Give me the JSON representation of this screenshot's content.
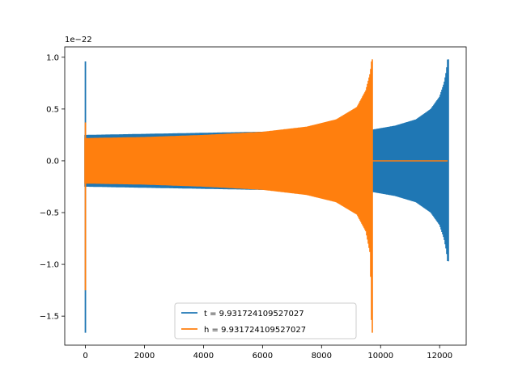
{
  "chart_data": {
    "type": "line",
    "title": "",
    "xlabel": "",
    "ylabel": "",
    "y_offset_label": "1e−22",
    "xlim": [
      -700,
      12900
    ],
    "ylim": [
      -1.78,
      1.1
    ],
    "x_ticks": [
      0,
      2000,
      4000,
      6000,
      8000,
      10000,
      12000
    ],
    "x_tick_labels": [
      "0",
      "2000",
      "4000",
      "6000",
      "8000",
      "10000",
      "12000"
    ],
    "y_ticks": [
      -1.5,
      -1.0,
      -0.5,
      0.0,
      0.5,
      1.0
    ],
    "y_tick_labels": [
      "−1.5",
      "−1.0",
      "−0.5",
      "0.0",
      "0.5",
      "1.0"
    ],
    "grid": false,
    "legend_position": "lower-center",
    "series": [
      {
        "name": "t = 9.931724109527027",
        "color": "#1f77b4",
        "spike": {
          "x": 0,
          "max": 0.96,
          "min": -1.66
        },
        "envelope": [
          {
            "x": 0,
            "upper": 0.25,
            "lower": -0.25
          },
          {
            "x": 9700,
            "upper": 0.3,
            "lower": -0.3
          },
          {
            "x": 10500,
            "upper": 0.34,
            "lower": -0.34
          },
          {
            "x": 11200,
            "upper": 0.4,
            "lower": -0.4
          },
          {
            "x": 11700,
            "upper": 0.5,
            "lower": -0.5
          },
          {
            "x": 12000,
            "upper": 0.62,
            "lower": -0.62
          },
          {
            "x": 12150,
            "upper": 0.75,
            "lower": -0.75
          },
          {
            "x": 12230,
            "upper": 0.87,
            "lower": -0.87
          },
          {
            "x": 12270,
            "upper": 0.98,
            "lower": -0.97
          }
        ]
      },
      {
        "name": "h = 9.931724109527027",
        "color": "#ff7f0e",
        "spike": {
          "x": 0,
          "max": 0.37,
          "min": -1.25
        },
        "envelope": [
          {
            "x": 0,
            "upper": 0.22,
            "lower": -0.22
          },
          {
            "x": 2000,
            "upper": 0.23,
            "lower": -0.23
          },
          {
            "x": 4000,
            "upper": 0.25,
            "lower": -0.25
          },
          {
            "x": 6000,
            "upper": 0.28,
            "lower": -0.28
          },
          {
            "x": 7500,
            "upper": 0.33,
            "lower": -0.33
          },
          {
            "x": 8500,
            "upper": 0.4,
            "lower": -0.4
          },
          {
            "x": 9200,
            "upper": 0.52,
            "lower": -0.52
          },
          {
            "x": 9500,
            "upper": 0.68,
            "lower": -0.68
          },
          {
            "x": 9650,
            "upper": 0.85,
            "lower": -0.9
          },
          {
            "x": 9700,
            "upper": 0.98,
            "lower": -1.66
          }
        ],
        "flat_tail": {
          "x_start": 9700,
          "x_end": 12270,
          "value": 0.0
        }
      }
    ]
  }
}
